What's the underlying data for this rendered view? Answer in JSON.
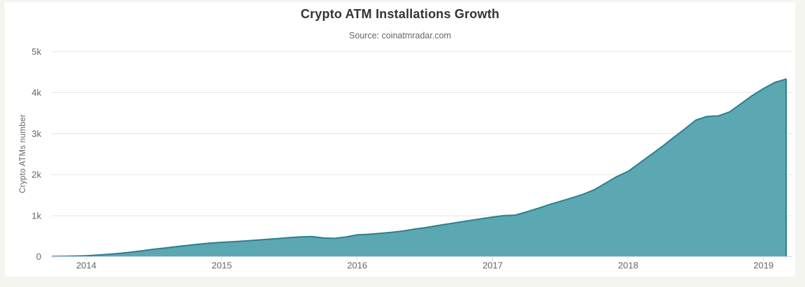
{
  "header": {
    "title": "Crypto ATM Installations Growth",
    "subtitle": "Source: coinatmradar.com"
  },
  "chart_data": {
    "type": "area",
    "title": "Crypto ATM Installations Growth",
    "subtitle": "Source: coinatmradar.com",
    "xlabel": "",
    "ylabel": "Crypto ATMs number",
    "ylim": [
      0,
      5000
    ],
    "grid": true,
    "legend": false,
    "categories": [
      "2013-10",
      "2013-11",
      "2013-12",
      "2014-01",
      "2014-02",
      "2014-03",
      "2014-04",
      "2014-05",
      "2014-06",
      "2014-07",
      "2014-08",
      "2014-09",
      "2014-10",
      "2014-11",
      "2014-12",
      "2015-01",
      "2015-02",
      "2015-03",
      "2015-04",
      "2015-05",
      "2015-06",
      "2015-07",
      "2015-08",
      "2015-09",
      "2015-10",
      "2015-11",
      "2015-12",
      "2016-01",
      "2016-02",
      "2016-03",
      "2016-04",
      "2016-05",
      "2016-06",
      "2016-07",
      "2016-08",
      "2016-09",
      "2016-10",
      "2016-11",
      "2016-12",
      "2017-01",
      "2017-02",
      "2017-03",
      "2017-04",
      "2017-05",
      "2017-06",
      "2017-07",
      "2017-08",
      "2017-09",
      "2017-10",
      "2017-11",
      "2017-12",
      "2018-01",
      "2018-02",
      "2018-03",
      "2018-04",
      "2018-05",
      "2018-06",
      "2018-07",
      "2018-08",
      "2018-09",
      "2018-10",
      "2018-11",
      "2018-12",
      "2019-01",
      "2019-02",
      "2019-03"
    ],
    "values": [
      4,
      8,
      14,
      22,
      38,
      58,
      82,
      110,
      145,
      180,
      212,
      245,
      275,
      305,
      330,
      350,
      365,
      382,
      400,
      420,
      442,
      465,
      482,
      490,
      455,
      445,
      478,
      532,
      545,
      565,
      592,
      622,
      668,
      705,
      752,
      795,
      838,
      882,
      925,
      965,
      1000,
      1012,
      1090,
      1178,
      1268,
      1350,
      1432,
      1520,
      1630,
      1790,
      1952,
      2080,
      2280,
      2480,
      2682,
      2900,
      3110,
      3330,
      3420,
      3432,
      3532,
      3730,
      3930,
      4100,
      4250,
      4330
    ],
    "yticks": {
      "values": [
        0,
        1000,
        2000,
        3000,
        4000,
        5000
      ],
      "labels": [
        "0",
        "1k",
        "2k",
        "3k",
        "4k",
        "5k"
      ]
    },
    "xticks": [
      "2014",
      "2015",
      "2016",
      "2017",
      "2018",
      "2019"
    ],
    "colors": {
      "area_fill": "#5BA7B2",
      "line": "#2E7F8D",
      "grid": "#E6E6E6",
      "axis": "#CCD6EB",
      "label": "#666666",
      "title": "#333333",
      "card_background": "#FFFFFF",
      "page_background": "#F5F5F0"
    }
  }
}
